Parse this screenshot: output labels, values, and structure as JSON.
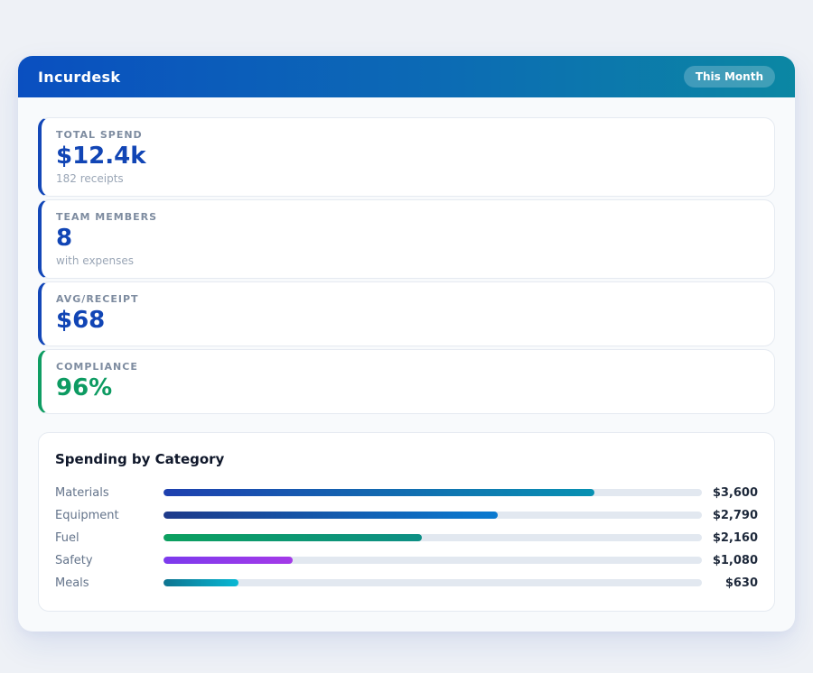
{
  "header": {
    "title": "Incurdesk",
    "badge_label": "This Month"
  },
  "stats": [
    {
      "label": "TOTAL SPEND",
      "value": "$12.4k",
      "sub": "182 receipts",
      "accent": "#1347b8",
      "value_color": "#1145b5"
    },
    {
      "label": "TEAM MEMBERS",
      "value": "8",
      "sub": "with expenses",
      "accent": "#1347b8",
      "value_color": "#1145b5"
    },
    {
      "label": "AVG/RECEIPT",
      "value": "$68",
      "sub": "",
      "accent": "#1347b8",
      "value_color": "#1145b5"
    },
    {
      "label": "COMPLIANCE",
      "value": "96%",
      "sub": "",
      "accent": "#0f9d63",
      "value_color": "#0d9b62"
    }
  ],
  "chart_data": {
    "type": "bar",
    "orientation": "horizontal",
    "title": "Spending by Category",
    "categories": [
      "Materials",
      "Equipment",
      "Fuel",
      "Safety",
      "Meals"
    ],
    "values": [
      3600,
      2790,
      2160,
      1080,
      630
    ],
    "value_labels": [
      "$3,600",
      "$2,790",
      "$2,160",
      "$1,080",
      "$630"
    ],
    "xlim": [
      0,
      4500
    ],
    "grid": false,
    "legend": "none",
    "track_color": "#e2e8f0",
    "bar_gradients": [
      [
        "#1e40af",
        "#0891b2"
      ],
      [
        "#1e3a8a",
        "#0a7ad0"
      ],
      [
        "#0ca05f",
        "#0d8f85"
      ],
      [
        "#7c3aed",
        "#a43ae8"
      ],
      [
        "#0e7490",
        "#08b8d4"
      ]
    ]
  },
  "colors": {
    "page_bg": "#eef1f6",
    "panel_bg": "#f8fafc",
    "card_bg": "#ffffff",
    "card_border": "#e5eaf1",
    "header_gradient_left": "#0a4fc0",
    "header_gradient_right": "#0b87a3",
    "label_gray": "#7e8ca0",
    "sub_gray": "#9aa6b6",
    "row_label_gray": "#64748b",
    "row_value_dark": "#1e293b"
  }
}
